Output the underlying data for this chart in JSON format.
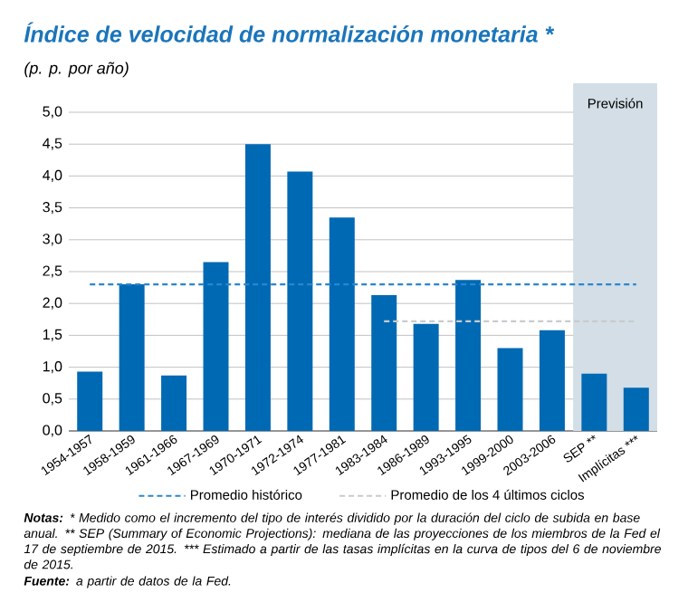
{
  "chart_data": {
    "type": "bar",
    "title": "Índice de velocidad de normalización monetaria *",
    "ylabel": "(p. p. por año)",
    "categories": [
      "1954-1957",
      "1958-1959",
      "1961-1966",
      "1967-1969",
      "1970-1971",
      "1972-1974",
      "1977-1981",
      "1983-1984",
      "1986-1989",
      "1993-1995",
      "1999-2000",
      "2003-2006",
      "SEP **",
      "Implícitas ***"
    ],
    "series": [
      {
        "color": "#0069b4",
        "values": [
          0.93,
          2.3,
          0.87,
          2.65,
          4.5,
          4.07,
          3.35,
          2.13,
          1.68,
          2.37,
          1.3,
          1.58,
          0.9,
          0.68
        ]
      },
      {
        "type": "line",
        "name": "Promedio histórico",
        "color": "#2a86cf",
        "line_style": "dashed",
        "values": [
          2.3,
          2.3,
          2.3,
          2.3,
          2.3,
          2.3,
          2.3,
          2.3,
          2.3,
          2.3,
          2.3,
          2.3,
          2.3,
          2.3
        ]
      },
      {
        "type": "line",
        "name": "Promedio de los 4 últimos ciclos",
        "color": "#c8cbce",
        "line_style": "dashed",
        "values": [
          null,
          null,
          null,
          null,
          null,
          null,
          null,
          1.72,
          1.72,
          1.72,
          1.72,
          1.72,
          1.72,
          1.72
        ]
      }
    ],
    "ylim": [
      0,
      5
    ],
    "yticks": [
      {
        "value": 0,
        "label": "0,0"
      },
      {
        "value": 0.5,
        "label": "0,5"
      },
      {
        "value": 1,
        "label": "1,0"
      },
      {
        "value": 1.5,
        "label": "1,5"
      },
      {
        "value": 2,
        "label": "2,0"
      },
      {
        "value": 2.5,
        "label": "2,5"
      },
      {
        "value": 3,
        "label": "3,0"
      },
      {
        "value": 3.5,
        "label": "3,5"
      },
      {
        "value": 4,
        "label": "4,0"
      },
      {
        "value": 4.5,
        "label": "4,5"
      },
      {
        "value": 5,
        "label": "5,0"
      }
    ],
    "grid": "y",
    "legend": "bottom",
    "marker": "none",
    "bands": [
      {
        "axis": "x",
        "from": "SEP **",
        "to": "Implícitas ***",
        "label": "Previsión",
        "color": "#d3dee6"
      }
    ],
    "annotations": [
      "**Notas:** * Medido como el incremento del tipo de interés dividido por la duración del ciclo de subida en base anual.  ** SEP (Summary of Economic Projections): mediana de las proyecciones de los miembros de la Fed el 17 de septiembre de 2015.  *** Estimado a partir de las tasas implícitas en la curva de tipos del 6 de noviembre de 2015.",
      "**Fuente:** a partir de datos de la Fed."
    ]
  }
}
